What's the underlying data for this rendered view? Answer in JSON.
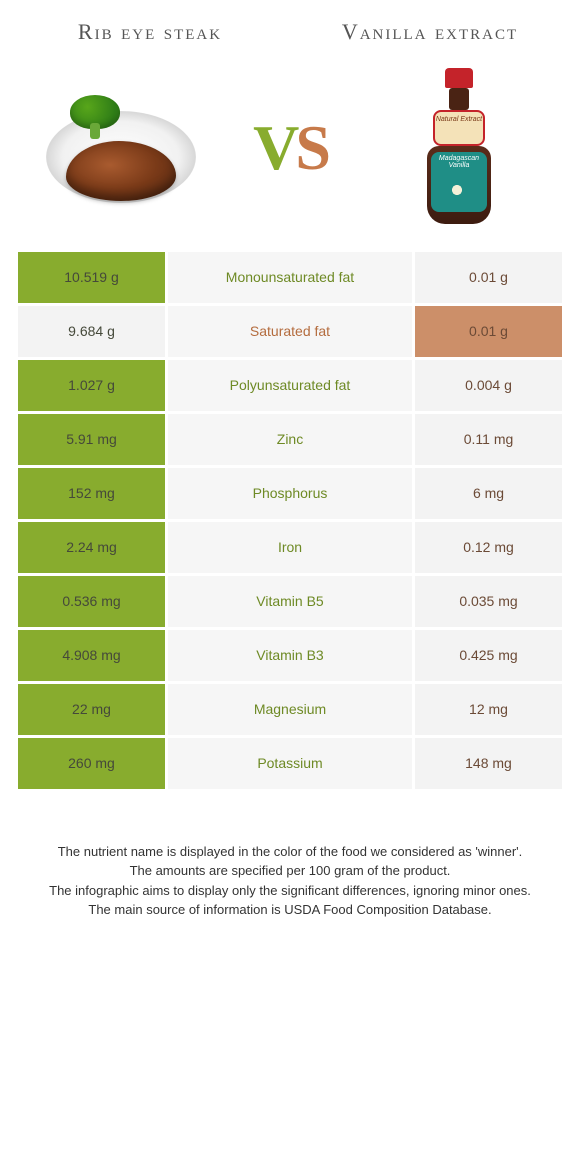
{
  "header": {
    "left_title": "Rib eye steak",
    "right_title": "Vanilla extract"
  },
  "vs": {
    "v": "V",
    "s": "S"
  },
  "colors": {
    "left_highlight": "#88ac2e",
    "right_highlight": "#cc8f69",
    "row_alt_grey": "#f3f3f3",
    "center_bg": "#f6f6f6",
    "nutrient_left_color": "#6e8a25",
    "nutrient_right_color": "#b46c3e",
    "background": "#ffffff"
  },
  "table": {
    "columns": [
      "left_value",
      "nutrient",
      "right_value"
    ],
    "rows": [
      {
        "left": "10.519 g",
        "nutrient": "Monounsaturated fat",
        "right": "0.01 g",
        "winner": "left"
      },
      {
        "left": "9.684 g",
        "nutrient": "Saturated fat",
        "right": "0.01 g",
        "winner": "right"
      },
      {
        "left": "1.027 g",
        "nutrient": "Polyunsaturated fat",
        "right": "0.004 g",
        "winner": "left"
      },
      {
        "left": "5.91 mg",
        "nutrient": "Zinc",
        "right": "0.11 mg",
        "winner": "left"
      },
      {
        "left": "152 mg",
        "nutrient": "Phosphorus",
        "right": "6 mg",
        "winner": "left"
      },
      {
        "left": "2.24 mg",
        "nutrient": "Iron",
        "right": "0.12 mg",
        "winner": "left"
      },
      {
        "left": "0.536 mg",
        "nutrient": "Vitamin B5",
        "right": "0.035 mg",
        "winner": "left"
      },
      {
        "left": "4.908 mg",
        "nutrient": "Vitamin B3",
        "right": "0.425 mg",
        "winner": "left"
      },
      {
        "left": "22 mg",
        "nutrient": "Magnesium",
        "right": "12 mg",
        "winner": "left"
      },
      {
        "left": "260 mg",
        "nutrient": "Potassium",
        "right": "148 mg",
        "winner": "left"
      }
    ]
  },
  "footer": {
    "line1": "The nutrient name is displayed in the color of the food we considered as 'winner'.",
    "line2": "The amounts are specified per 100 gram of the product.",
    "line3": "The infographic aims to display only the significant differences, ignoring minor ones.",
    "line4": "The main source of information is USDA Food Composition Database."
  },
  "bottle_labels": {
    "top": "Natural Extract",
    "body": "Madagascan Vanilla"
  }
}
